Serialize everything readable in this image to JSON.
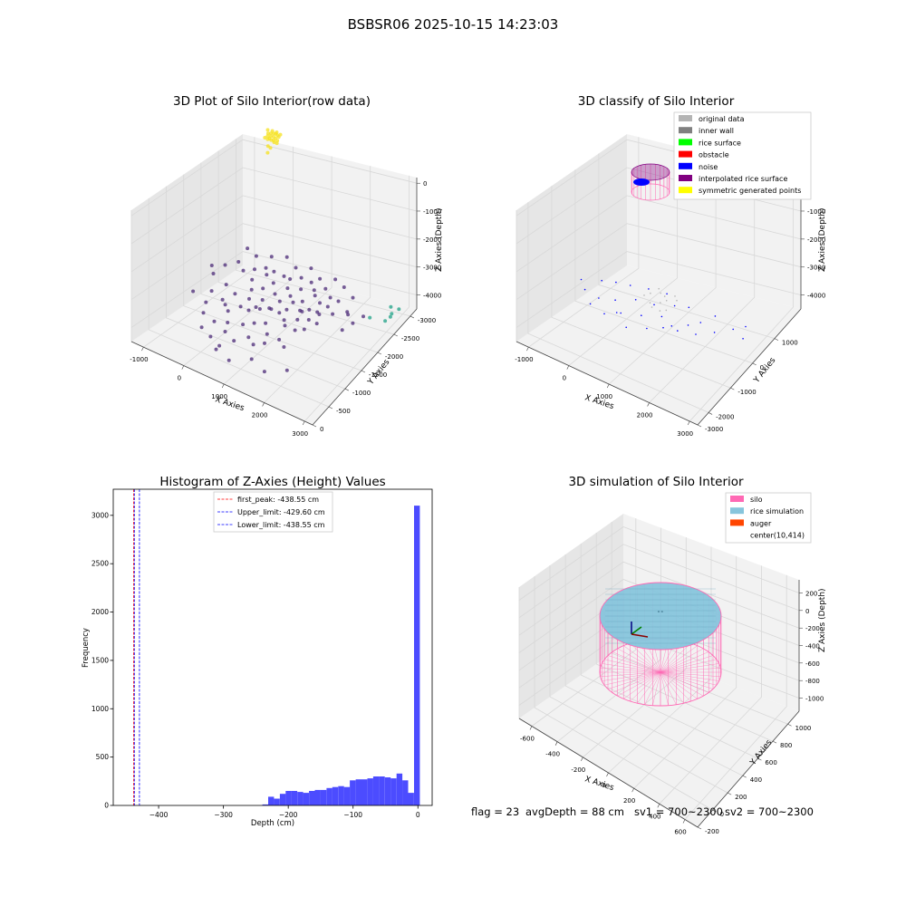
{
  "figure_title": "BSBSR06 2025-10-15 14:23:03",
  "status": {
    "flag": "flag = 23",
    "avg_depth": "avgDepth = 88 cm",
    "sv1": "sv1 = 700~2300",
    "sv2": "sv2 = 700~2300"
  },
  "colors": {
    "pane": "#f2f2f2",
    "pane_dark": "#e6e6e6",
    "grid": "#d8d8d8",
    "raw_purple": "#4b2a77",
    "raw_teal": "#1fa187",
    "raw_yellow": "#f5e11f",
    "hist_bar": "#0000ff",
    "peak_line": "#ff0000",
    "limit_line": "#0000ff",
    "silo": "#ff69b4",
    "rice": "#87c5dc",
    "auger": "#ff4500"
  },
  "chart_data": [
    {
      "type": "scatter",
      "subtype": "3d",
      "title": "3D Plot of Silo Interior(row data)",
      "xlabel": "X Axies",
      "ylabel": "Y Axies",
      "zlabel": "Z Axies (Depth)",
      "xlim": [
        -1200,
        3300
      ],
      "ylim": [
        -3000,
        200
      ],
      "zlim": [
        -4500,
        200
      ],
      "x_ticks": [
        "-1000",
        "0",
        "1000",
        "2000",
        "3000"
      ],
      "y_ticks": [
        "0",
        "-500",
        "-1000",
        "-1500",
        "-2000",
        "-2500",
        "-3000"
      ],
      "z_ticks": [
        "0",
        "-1000",
        "-2000",
        "-3000",
        "-4000"
      ],
      "series": [
        {
          "color": "raw_purple",
          "x": [
            -900,
            -700,
            -650,
            -500,
            -400,
            -300,
            -300,
            -200,
            -150,
            -100,
            0,
            0,
            50,
            100,
            150,
            200,
            200,
            250,
            300,
            300,
            350,
            400,
            400,
            450,
            500,
            500,
            550,
            600,
            600,
            650,
            700,
            700,
            750,
            800,
            800,
            850,
            900,
            900,
            950,
            1000,
            1000,
            1050,
            1100,
            1100,
            1150,
            1200,
            1200,
            1250,
            1300,
            1300,
            1350,
            1400,
            1400,
            1450,
            1500,
            1500,
            1550,
            1600,
            1600,
            1650,
            1700,
            1700,
            1750,
            1800,
            1800,
            1850,
            1900,
            1950,
            2000,
            -500,
            -200,
            100,
            400,
            700,
            1000,
            1300,
            1600,
            1900,
            2200,
            2300,
            500,
            900,
            1300,
            1700,
            2100,
            -800,
            -400,
            0,
            300,
            600,
            900,
            1200,
            1500,
            1800,
            2100,
            2400,
            2500,
            2600,
            2700
          ],
          "y": [
            -900,
            -1100,
            -800,
            -1400,
            -700,
            -1200,
            -1900,
            -800,
            -1500,
            -2200,
            -700,
            -1300,
            -2000,
            -900,
            -1700,
            -600,
            -2300,
            -1100,
            -700,
            -1900,
            -1300,
            -600,
            -2100,
            -1000,
            -1500,
            -2400,
            -800,
            -1200,
            -1800,
            -600,
            -1400,
            -2200,
            -1000,
            -600,
            -1700,
            -1300,
            -800,
            -2000,
            -1100,
            -500,
            -1600,
            -900,
            -1300,
            -2100,
            -700,
            -1000,
            -1800,
            -500,
            -1400,
            -2000,
            -900,
            -600,
            -1500,
            -1100,
            -700,
            -1800,
            -1300,
            -500,
            -1000,
            -1500,
            -800,
            -1900,
            -1200,
            -600,
            -1400,
            -1000,
            -800,
            -1200,
            -600,
            -300,
            -400,
            -300,
            -200,
            -300,
            -200,
            -300,
            -200,
            -300,
            -400,
            -700,
            -2500,
            -2600,
            -2400,
            -2500,
            -2300,
            -1600,
            -1700,
            -1600,
            -1500,
            -1400,
            -1300,
            -1200,
            -1100,
            -1000,
            -900,
            -800,
            -1100,
            -900,
            -700
          ],
          "z": [
            -4300,
            -4200,
            -4250,
            -4300,
            -4100,
            -4200,
            -4300,
            -4150,
            -4250,
            -4300,
            -4100,
            -4200,
            -4250,
            -4150,
            -4200,
            -4050,
            -4300,
            -4150,
            -4100,
            -4250,
            -4150,
            -4050,
            -4250,
            -4100,
            -4200,
            -4300,
            -4100,
            -4150,
            -4250,
            -4050,
            -4150,
            -4250,
            -4100,
            -4050,
            -4200,
            -4150,
            -4050,
            -4250,
            -4100,
            -4000,
            -4200,
            -4100,
            -4150,
            -4250,
            -4050,
            -4100,
            -4200,
            -4000,
            -4150,
            -4200,
            -4100,
            -4050,
            -4150,
            -4100,
            -4050,
            -4200,
            -4100,
            -4000,
            -4100,
            -4150,
            -4050,
            -4200,
            -4100,
            -4050,
            -4150,
            -4100,
            -4050,
            -4100,
            -4050,
            -4200,
            -4150,
            -4100,
            -4050,
            -4100,
            -4050,
            -4100,
            -4050,
            -4000,
            -4050,
            -4100,
            -4300,
            -4300,
            -4250,
            -4300,
            -4250,
            -4250,
            -4250,
            -4200,
            -4200,
            -4150,
            -4150,
            -4100,
            -4100,
            -4050,
            -4050,
            -4000,
            -4100,
            -4050,
            -4000
          ]
        },
        {
          "color": "raw_teal",
          "x": [
            2900,
            3000,
            3050,
            3100,
            3000,
            2700
          ],
          "y": [
            -100,
            -200,
            -300,
            -100,
            -400,
            -500
          ],
          "z": [
            -4300,
            -4350,
            -4300,
            -4250,
            -4350,
            -4300
          ]
        },
        {
          "color": "raw_yellow",
          "x": [
            -150,
            -100,
            -50,
            0,
            50,
            100,
            -120,
            -60,
            0,
            60,
            120,
            -80,
            0,
            80,
            -30,
            30,
            -200,
            -100,
            0,
            100,
            -150,
            -50,
            50,
            150,
            0
          ],
          "y": [
            -100,
            -80,
            -60,
            -50,
            -60,
            -80,
            -150,
            -130,
            -120,
            -130,
            -150,
            -200,
            -190,
            -200,
            -250,
            -250,
            -50,
            -30,
            -20,
            -30,
            -200,
            -180,
            -180,
            -200,
            -300
          ],
          "z": [
            -120,
            -110,
            -100,
            -100,
            -100,
            -110,
            -130,
            -120,
            -110,
            -120,
            -130,
            -150,
            -140,
            -150,
            -300,
            -320,
            -90,
            -85,
            -80,
            -85,
            -140,
            -130,
            -130,
            -140,
            -450
          ]
        }
      ]
    },
    {
      "type": "scatter",
      "subtype": "3d",
      "title": "3D classify of Silo Interior",
      "xlabel": "X Axies",
      "ylabel": "Y Axies",
      "zlabel": "Z Axies (Depth)",
      "xlim": [
        -1200,
        3300
      ],
      "ylim": [
        -3200,
        1500
      ],
      "zlim": [
        -4500,
        200
      ],
      "x_ticks": [
        "-1000",
        "0",
        "1000",
        "2000",
        "3000"
      ],
      "y_ticks": [
        "1000",
        "0",
        "-1000",
        "-2000",
        "-3000"
      ],
      "z_ticks": [
        "0",
        "-1000",
        "-2000",
        "-3000",
        "-4000"
      ],
      "legend": {
        "location": "upper right",
        "entries": [
          {
            "label": "original data",
            "color": "#b4b4b4"
          },
          {
            "label": "inner wall",
            "color": "#808080"
          },
          {
            "label": "rice surface",
            "color": "#00ff00"
          },
          {
            "label": "obstacle",
            "color": "#ff0000"
          },
          {
            "label": "noise",
            "color": "#0000ff"
          },
          {
            "label": "interpolated rice surface",
            "color": "#800080"
          },
          {
            "label": "symmetric generated points",
            "color": "#ffff00"
          }
        ]
      },
      "noise": {
        "x": [
          -900,
          -700,
          -500,
          -300,
          -200,
          0,
          100,
          200,
          400,
          500,
          700,
          800,
          900,
          1100,
          1200,
          1400,
          1500,
          1700,
          1900,
          2100,
          2300,
          2600,
          2800,
          2900,
          -400,
          0,
          300,
          600,
          1000,
          1300,
          1600,
          2000
        ],
        "y": [
          -800,
          -1000,
          -600,
          -1100,
          -500,
          -900,
          -400,
          -1200,
          -700,
          -300,
          -1000,
          -600,
          -200,
          -800,
          -400,
          -900,
          -300,
          -700,
          -500,
          -200,
          -600,
          -300,
          -100,
          -400,
          -1300,
          -1400,
          -1200,
          -1500,
          -1300,
          -1100,
          -1000,
          -900
        ],
        "z": [
          -4200,
          -4250,
          -4150,
          -4200,
          -4100,
          -4250,
          -4100,
          -4300,
          -4150,
          -4050,
          -4250,
          -4150,
          -4050,
          -4200,
          -4100,
          -4250,
          -4050,
          -4200,
          -4150,
          -4050,
          -4150,
          -4100,
          -4050,
          -4150,
          -4300,
          -4300,
          -4250,
          -4300,
          -4250,
          -4200,
          -4200,
          -4150
        ]
      },
      "original": {
        "x": [
          500,
          600,
          700,
          800,
          900,
          1000,
          1100,
          1200,
          700,
          900,
          1100,
          800,
          1000
        ],
        "y": [
          -500,
          -400,
          -600,
          -300,
          -500,
          -400,
          -600,
          -300,
          -200,
          -300,
          -200,
          -700,
          -700
        ],
        "z": [
          -4100,
          -4050,
          -4150,
          -4000,
          -4100,
          -4050,
          -4150,
          -4000,
          -4000,
          -4050,
          -4000,
          -4150,
          -4150
        ]
      }
    },
    {
      "type": "bar",
      "subtype": "histogram",
      "title": "Histogram of Z-Axies (Height) Values",
      "xlabel": "Depth (cm)",
      "ylabel": "Frequency",
      "xlim": [
        -470,
        22
      ],
      "ylim": [
        0,
        3270
      ],
      "x_ticks": [
        -400,
        -300,
        -200,
        -100,
        0
      ],
      "y_ticks": [
        0,
        500,
        1000,
        1500,
        2000,
        2500,
        3000
      ],
      "bins": [
        -240,
        -231,
        -222,
        -213,
        -204,
        -195,
        -186,
        -177,
        -168,
        -159,
        -150,
        -141,
        -132,
        -123,
        -114,
        -105,
        -96,
        -87,
        -78,
        -69,
        -60,
        -51,
        -42,
        -33,
        -24,
        -15,
        -6
      ],
      "bin_width": 9,
      "values": [
        10,
        90,
        70,
        120,
        150,
        150,
        140,
        130,
        150,
        160,
        160,
        180,
        190,
        200,
        190,
        260,
        270,
        270,
        280,
        300,
        300,
        290,
        280,
        330,
        260,
        130,
        3100
      ],
      "lines": [
        {
          "label": "first_peak: -438.55 cm",
          "x": -438.55,
          "color": "peak_line"
        },
        {
          "label": "Upper_limit: -429.60 cm",
          "x": -429.6,
          "color": "limit_line"
        },
        {
          "label": "Lower_limit: -438.55 cm",
          "x": -438.55,
          "color": "limit_line"
        }
      ],
      "legend": "upper center"
    },
    {
      "type": "surface",
      "subtype": "3d",
      "title": "3D simulation of Silo Interior",
      "xlabel": "X Axies",
      "ylabel": "Y Axies",
      "zlabel": "Z Axies (Depth)",
      "xlim": [
        -700,
        700
      ],
      "ylim": [
        -250,
        1100
      ],
      "zlim": [
        -1150,
        350
      ],
      "x_ticks": [
        "-600",
        "-400",
        "-200",
        "0",
        "200",
        "400",
        "600"
      ],
      "y_ticks": [
        "1000",
        "800",
        "600",
        "400",
        "200",
        "0",
        "-200"
      ],
      "z_ticks": [
        "200",
        "0",
        "-200",
        "-400",
        "-600",
        "-800",
        "-1000"
      ],
      "legend": {
        "location": "upper right",
        "entries": [
          {
            "label": "silo",
            "color": "#ff69b4"
          },
          {
            "label": "rice simulation",
            "color": "#87c5dc"
          },
          {
            "label": "auger",
            "color": "#ff4500"
          },
          {
            "label": "center(10,414)",
            "color": "none"
          }
        ]
      },
      "silo": {
        "center": [
          10,
          414
        ],
        "radius": 560,
        "top": 0,
        "bottom": -1000
      },
      "rice_surface": {
        "center": [
          10,
          414
        ],
        "radius": 560,
        "depth": -88
      }
    }
  ]
}
